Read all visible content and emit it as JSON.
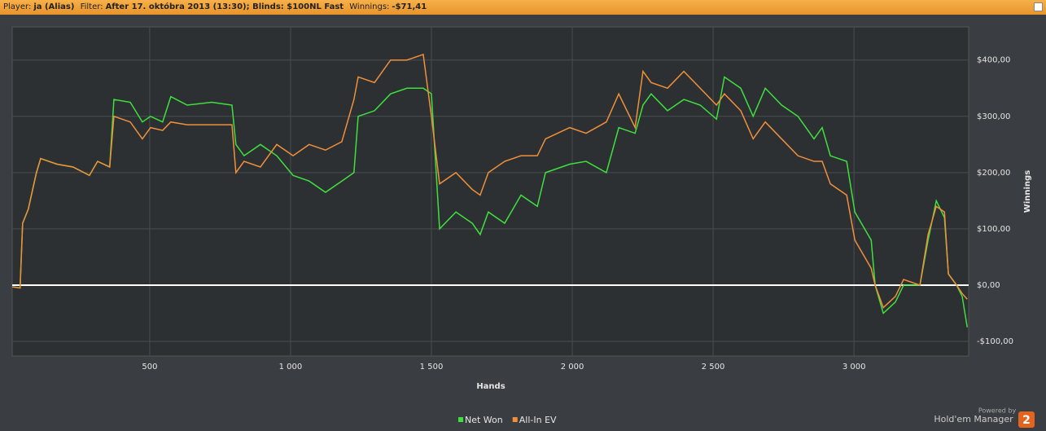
{
  "header": {
    "player_label": "Player:",
    "player": "ja (Alias)",
    "filter_label": "Filter:",
    "filter": "After 17. októbra 2013 (13:30); Blinds: $100NL Fast",
    "winnings_label": "Winnings:",
    "winnings": "-$71,41"
  },
  "footer": {
    "powered_by": "Powered by",
    "brand": "Hold'em Manager",
    "badge": "2"
  },
  "chart_data": {
    "type": "line",
    "x_label": "Hands",
    "y_label": "Winnings",
    "x": [
      12,
      40,
      49,
      69,
      98,
      113,
      171,
      228,
      286,
      315,
      358,
      373,
      431,
      474,
      503,
      546,
      575,
      633,
      720,
      792,
      806,
      835,
      893,
      951,
      1009,
      1066,
      1124,
      1182,
      1225,
      1240,
      1298,
      1355,
      1413,
      1471,
      1500,
      1529,
      1587,
      1645,
      1673,
      1702,
      1760,
      1818,
      1876,
      1905,
      1991,
      2049,
      2121,
      2165,
      2223,
      2251,
      2280,
      2338,
      2396,
      2454,
      2512,
      2540,
      2598,
      2642,
      2685,
      2743,
      2801,
      2858,
      2887,
      2916,
      2974,
      3003,
      3061,
      3075,
      3104,
      3147,
      3176,
      3234,
      3263,
      3292,
      3321,
      3335,
      3364,
      3384,
      3402
    ],
    "series": [
      {
        "name": "Net Won",
        "color": "#3ee03e",
        "values": [
          -3,
          -5,
          110,
          135,
          200,
          225,
          215,
          210,
          195,
          220,
          210,
          330,
          325,
          290,
          300,
          290,
          335,
          320,
          325,
          320,
          250,
          230,
          250,
          230,
          195,
          185,
          165,
          185,
          200,
          300,
          310,
          340,
          350,
          350,
          340,
          100,
          130,
          110,
          90,
          130,
          110,
          160,
          140,
          200,
          215,
          220,
          200,
          280,
          270,
          320,
          340,
          310,
          330,
          320,
          295,
          370,
          350,
          300,
          350,
          320,
          300,
          260,
          280,
          230,
          220,
          130,
          80,
          0,
          -50,
          -30,
          0,
          0,
          80,
          150,
          120,
          20,
          0,
          -20,
          -75
        ]
      },
      {
        "name": "All-In EV",
        "color": "#f0903a",
        "values": [
          -3,
          -5,
          110,
          135,
          200,
          225,
          215,
          210,
          195,
          220,
          210,
          300,
          290,
          260,
          280,
          275,
          290,
          285,
          285,
          285,
          200,
          220,
          210,
          250,
          230,
          250,
          240,
          255,
          330,
          370,
          360,
          400,
          400,
          410,
          300,
          180,
          200,
          170,
          160,
          200,
          220,
          230,
          230,
          260,
          280,
          270,
          290,
          340,
          280,
          380,
          360,
          350,
          380,
          350,
          320,
          340,
          310,
          260,
          290,
          260,
          230,
          220,
          220,
          180,
          160,
          80,
          30,
          0,
          -40,
          -20,
          10,
          0,
          90,
          140,
          130,
          20,
          0,
          -15,
          -25
        ]
      }
    ],
    "xlim": [
      12,
      3407
    ],
    "ylim": [
      -126,
      459
    ],
    "xticks": [
      {
        "value": 500,
        "label": "500"
      },
      {
        "value": 1000,
        "label": "1 000"
      },
      {
        "value": 1500,
        "label": "1 500"
      },
      {
        "value": 2000,
        "label": "2 000"
      },
      {
        "value": 2500,
        "label": "2 500"
      },
      {
        "value": 3000,
        "label": "3 000"
      }
    ],
    "yticks": [
      {
        "value": -100,
        "label": "-$100,00"
      },
      {
        "value": 0,
        "label": "$0,00"
      },
      {
        "value": 100,
        "label": "$100,00"
      },
      {
        "value": 200,
        "label": "$200,00"
      },
      {
        "value": 300,
        "label": "$300,00"
      },
      {
        "value": 400,
        "label": "$400,00"
      }
    ],
    "grid": true
  }
}
